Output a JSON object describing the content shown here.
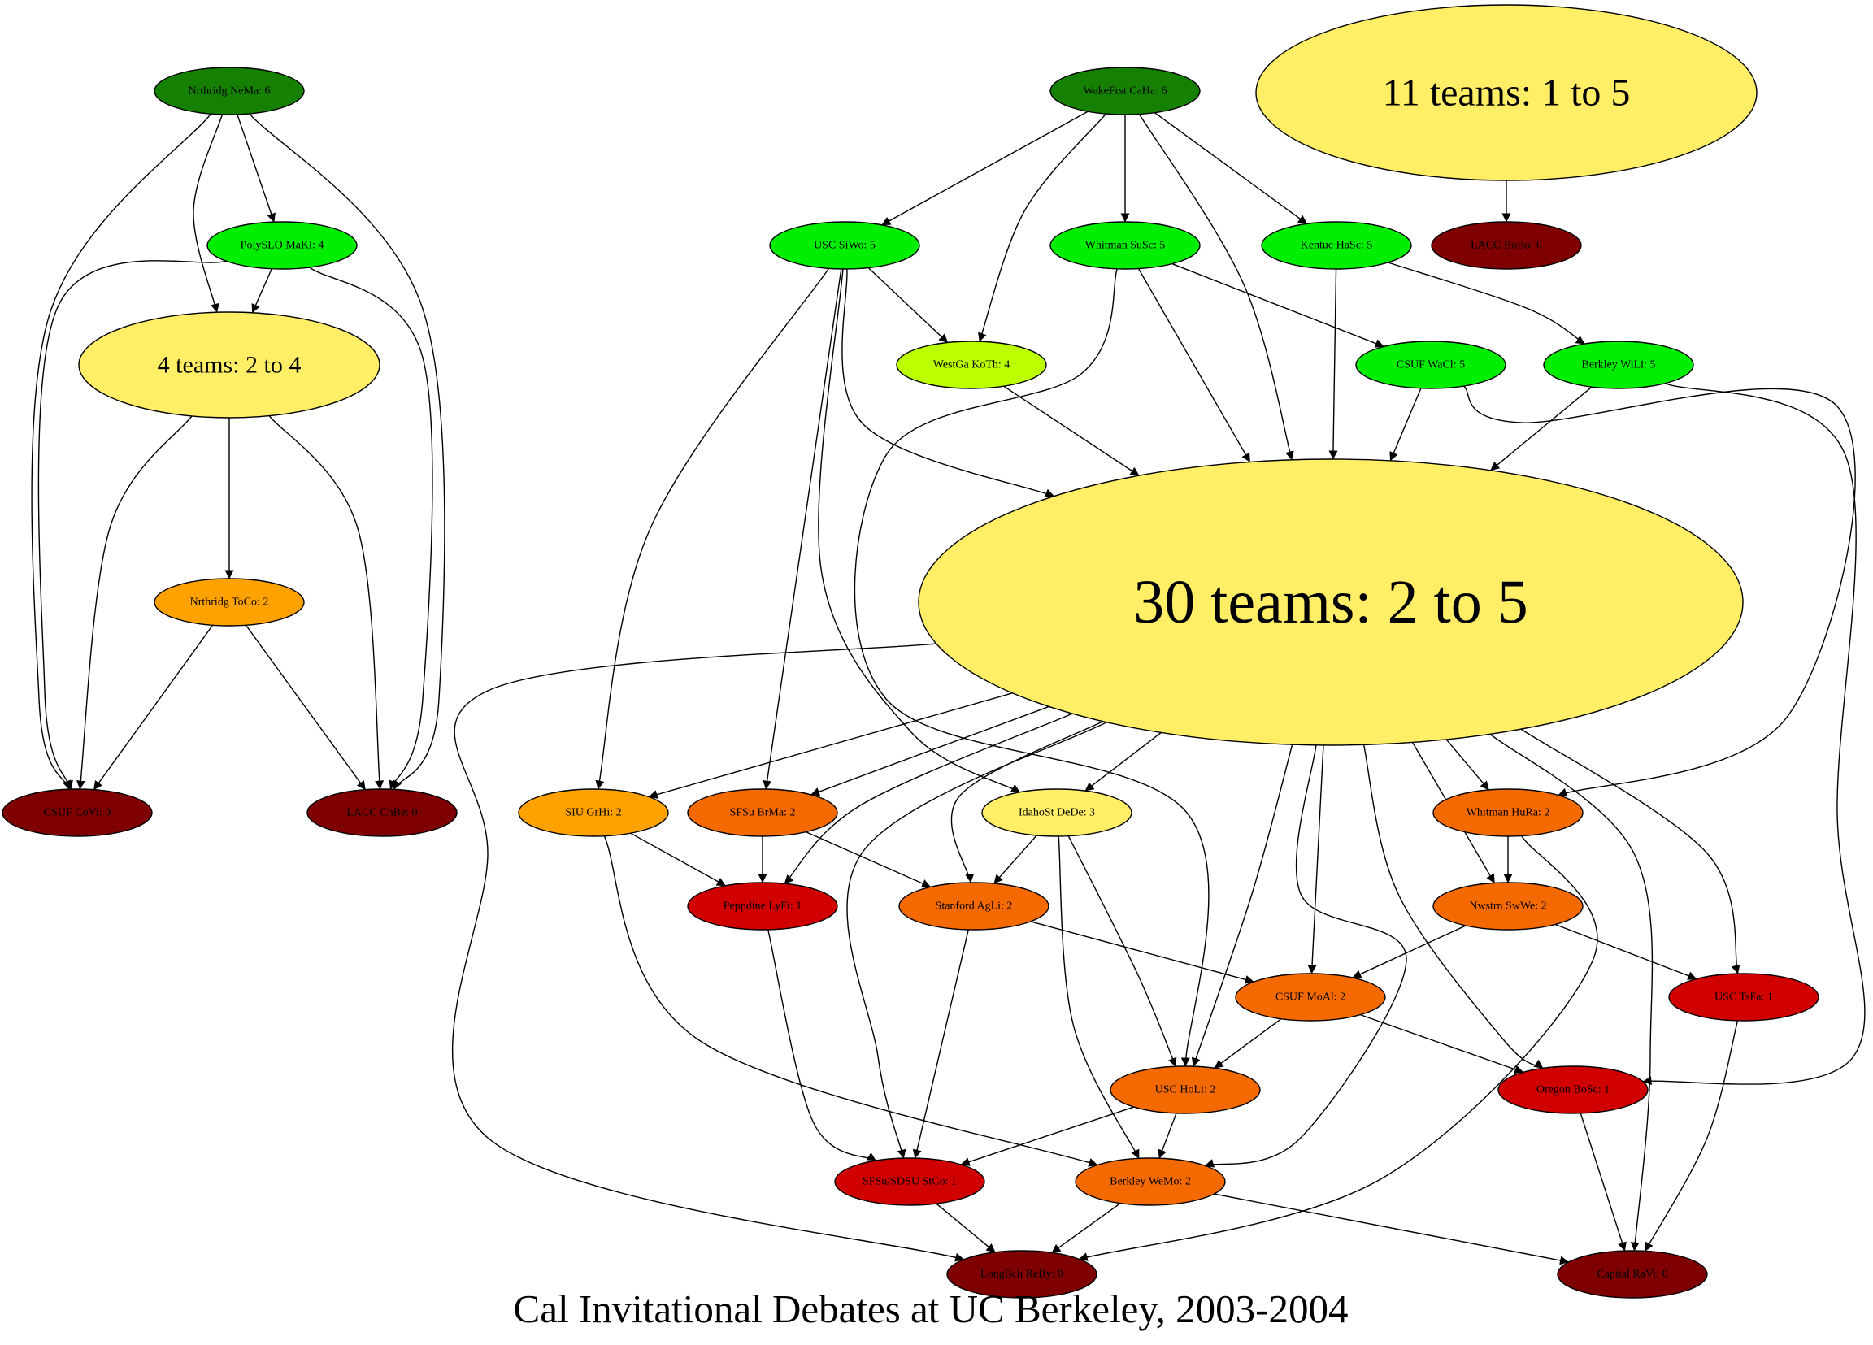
{
  "title": "Cal Invitational Debates at UC Berkeley, 2003-2004",
  "colors": {
    "win6": "#158001",
    "win5": "#00ee00",
    "win4": "#bbff00",
    "group": "#ffee66",
    "win3": "#ffee66",
    "win2_light": "#ffa200",
    "win2": "#f56a00",
    "win1": "#d10000",
    "win0": "#7f0000"
  },
  "nodes": [
    {
      "id": "nrthridg-nema",
      "label": "Nrthridg NeMa: 6",
      "color": "#158001"
    },
    {
      "id": "polyslo-maki",
      "label": "PolySLO MaKl: 4",
      "color": "#00ee00"
    },
    {
      "id": "group-4",
      "label": "4 teams: 2 to 4",
      "color": "#ffee66"
    },
    {
      "id": "nrthridg-toco",
      "label": "Nrthridg ToCo: 2",
      "color": "#ffa200"
    },
    {
      "id": "csuf-covi",
      "label": "CSUF CoVi: 0",
      "color": "#7f0000"
    },
    {
      "id": "lacc-chbe",
      "label": "LACC ChBe: 0",
      "color": "#7f0000"
    },
    {
      "id": "wakefrst-caha",
      "label": "WakeFrst CaHa: 6",
      "color": "#158001"
    },
    {
      "id": "group-11",
      "label": "11 teams: 1 to 5",
      "color": "#ffee66"
    },
    {
      "id": "lacc-bobo",
      "label": "LACC BoBo: 0",
      "color": "#7f0000"
    },
    {
      "id": "usc-siwo",
      "label": "USC SiWo: 5",
      "color": "#00ee00"
    },
    {
      "id": "whitman-susc",
      "label": "Whitman SuSc: 5",
      "color": "#00ee00"
    },
    {
      "id": "kentuc-hasc",
      "label": "Kentuc HaSc: 5",
      "color": "#00ee00"
    },
    {
      "id": "westga-koth",
      "label": "WestGa KoTh: 4",
      "color": "#bbff00"
    },
    {
      "id": "csuf-wacl",
      "label": "CSUF WaCl: 5",
      "color": "#00ee00"
    },
    {
      "id": "berkley-wili",
      "label": "Berkley WiLi: 5",
      "color": "#00ee00"
    },
    {
      "id": "group-30",
      "label": "30 teams: 2 to 5",
      "color": "#ffee66"
    },
    {
      "id": "siu-grhi",
      "label": "SIU GrHi: 2",
      "color": "#ffa200"
    },
    {
      "id": "sfsu-brma",
      "label": "SFSu BrMa: 2",
      "color": "#f56a00"
    },
    {
      "id": "idahost-dede",
      "label": "IdahoSt DeDe: 3",
      "color": "#ffee66"
    },
    {
      "id": "whitman-hura",
      "label": "Whitman HuRa: 2",
      "color": "#f56a00"
    },
    {
      "id": "peppdine-lyfi",
      "label": "Peppdine LyFi: 1",
      "color": "#d10000"
    },
    {
      "id": "stanford-agli",
      "label": "Stanford AgLi: 2",
      "color": "#f56a00"
    },
    {
      "id": "nwstrn-swwe",
      "label": "Nwstrn SwWe: 2",
      "color": "#f56a00"
    },
    {
      "id": "csuf-moai",
      "label": "CSUF MoAl: 2",
      "color": "#f56a00"
    },
    {
      "id": "usc-tsfa",
      "label": "USC TsFa: 1",
      "color": "#d10000"
    },
    {
      "id": "usc-holi",
      "label": "USC HoLi: 2",
      "color": "#f56a00"
    },
    {
      "id": "oregon-bosc",
      "label": "Oregon BoSc: 1",
      "color": "#d10000"
    },
    {
      "id": "sfsu-sdsu-stco",
      "label": "SFSu/SDSU StCo: 1",
      "color": "#d10000"
    },
    {
      "id": "berkley-wemo",
      "label": "Berkley WeMo: 2",
      "color": "#f56a00"
    },
    {
      "id": "longbch-reby",
      "label": "LongBch ReBy: 0",
      "color": "#7f0000"
    },
    {
      "id": "capital-ravi",
      "label": "Capital RaVi: 0",
      "color": "#7f0000"
    }
  ],
  "edges": [
    {
      "from": "nrthridg-nema",
      "to": "polyslo-maki"
    },
    {
      "from": "nrthridg-nema",
      "to": "group-4"
    },
    {
      "from": "nrthridg-nema",
      "to": "csuf-covi"
    },
    {
      "from": "nrthridg-nema",
      "to": "lacc-chbe"
    },
    {
      "from": "polyslo-maki",
      "to": "group-4"
    },
    {
      "from": "polyslo-maki",
      "to": "csuf-covi"
    },
    {
      "from": "polyslo-maki",
      "to": "lacc-chbe"
    },
    {
      "from": "group-4",
      "to": "nrthridg-toco"
    },
    {
      "from": "group-4",
      "to": "csuf-covi"
    },
    {
      "from": "group-4",
      "to": "lacc-chbe"
    },
    {
      "from": "nrthridg-toco",
      "to": "csuf-covi"
    },
    {
      "from": "nrthridg-toco",
      "to": "lacc-chbe"
    },
    {
      "from": "group-11",
      "to": "lacc-bobo"
    },
    {
      "from": "wakefrst-caha",
      "to": "usc-siwo"
    },
    {
      "from": "wakefrst-caha",
      "to": "westga-koth"
    },
    {
      "from": "wakefrst-caha",
      "to": "whitman-susc"
    },
    {
      "from": "wakefrst-caha",
      "to": "group-30"
    },
    {
      "from": "wakefrst-caha",
      "to": "kentuc-hasc"
    },
    {
      "from": "usc-siwo",
      "to": "westga-koth"
    },
    {
      "from": "usc-siwo",
      "to": "group-30"
    },
    {
      "from": "usc-siwo",
      "to": "siu-grhi"
    },
    {
      "from": "usc-siwo",
      "to": "sfsu-brma"
    },
    {
      "from": "usc-siwo",
      "to": "idahost-dede"
    },
    {
      "from": "whitman-susc",
      "to": "group-30"
    },
    {
      "from": "whitman-susc",
      "to": "csuf-wacl"
    },
    {
      "from": "whitman-susc",
      "to": "usc-holi"
    },
    {
      "from": "kentuc-hasc",
      "to": "group-30"
    },
    {
      "from": "kentuc-hasc",
      "to": "berkley-wili"
    },
    {
      "from": "westga-koth",
      "to": "group-30"
    },
    {
      "from": "csuf-wacl",
      "to": "group-30"
    },
    {
      "from": "csuf-wacl",
      "to": "whitman-hura"
    },
    {
      "from": "berkley-wili",
      "to": "group-30"
    },
    {
      "from": "berkley-wili",
      "to": "oregon-bosc"
    },
    {
      "from": "group-30",
      "to": "siu-grhi"
    },
    {
      "from": "group-30",
      "to": "sfsu-brma"
    },
    {
      "from": "group-30",
      "to": "peppdine-lyfi"
    },
    {
      "from": "group-30",
      "to": "stanford-agli"
    },
    {
      "from": "group-30",
      "to": "sfsu-sdsu-stco"
    },
    {
      "from": "group-30",
      "to": "idahost-dede"
    },
    {
      "from": "group-30",
      "to": "longbch-reby"
    },
    {
      "from": "group-30",
      "to": "usc-holi"
    },
    {
      "from": "group-30",
      "to": "csuf-moai"
    },
    {
      "from": "group-30",
      "to": "berkley-wemo"
    },
    {
      "from": "group-30",
      "to": "oregon-bosc"
    },
    {
      "from": "group-30",
      "to": "nwstrn-swwe"
    },
    {
      "from": "group-30",
      "to": "whitman-hura"
    },
    {
      "from": "group-30",
      "to": "capital-ravi"
    },
    {
      "from": "group-30",
      "to": "usc-tsfa"
    },
    {
      "from": "siu-grhi",
      "to": "peppdine-lyfi"
    },
    {
      "from": "siu-grhi",
      "to": "berkley-wemo"
    },
    {
      "from": "sfsu-brma",
      "to": "peppdine-lyfi"
    },
    {
      "from": "sfsu-brma",
      "to": "stanford-agli"
    },
    {
      "from": "idahost-dede",
      "to": "stanford-agli"
    },
    {
      "from": "idahost-dede",
      "to": "usc-holi"
    },
    {
      "from": "idahost-dede",
      "to": "berkley-wemo"
    },
    {
      "from": "whitman-hura",
      "to": "nwstrn-swwe"
    },
    {
      "from": "whitman-hura",
      "to": "longbch-reby"
    },
    {
      "from": "peppdine-lyfi",
      "to": "sfsu-sdsu-stco"
    },
    {
      "from": "stanford-agli",
      "to": "csuf-moai"
    },
    {
      "from": "stanford-agli",
      "to": "sfsu-sdsu-stco"
    },
    {
      "from": "nwstrn-swwe",
      "to": "csuf-moai"
    },
    {
      "from": "nwstrn-swwe",
      "to": "usc-tsfa"
    },
    {
      "from": "csuf-moai",
      "to": "usc-holi"
    },
    {
      "from": "csuf-moai",
      "to": "oregon-bosc"
    },
    {
      "from": "usc-tsfa",
      "to": "capital-ravi"
    },
    {
      "from": "usc-holi",
      "to": "sfsu-sdsu-stco"
    },
    {
      "from": "usc-holi",
      "to": "berkley-wemo"
    },
    {
      "from": "oregon-bosc",
      "to": "capital-ravi"
    },
    {
      "from": "sfsu-sdsu-stco",
      "to": "longbch-reby"
    },
    {
      "from": "berkley-wemo",
      "to": "longbch-reby"
    },
    {
      "from": "berkley-wemo",
      "to": "capital-ravi"
    }
  ]
}
